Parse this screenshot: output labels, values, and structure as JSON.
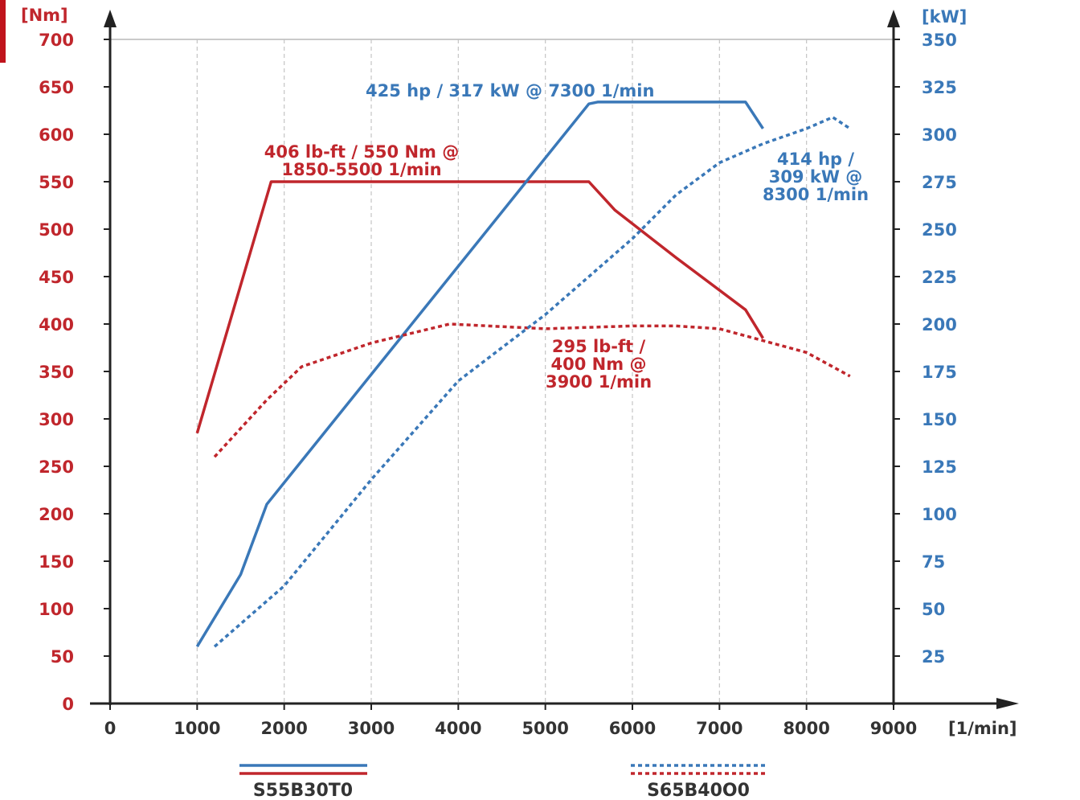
{
  "chart_data": {
    "type": "line",
    "title": "",
    "x_axis": {
      "label": "[1/min]",
      "min": 0,
      "max": 9000,
      "ticks": [
        0,
        1000,
        2000,
        3000,
        4000,
        5000,
        6000,
        7000,
        8000,
        9000
      ]
    },
    "y_axis_left": {
      "label": "[Nm]",
      "min": 0,
      "max": 700,
      "ticks": [
        0,
        50,
        100,
        150,
        200,
        250,
        300,
        350,
        400,
        450,
        500,
        550,
        600,
        650,
        700
      ],
      "color": "#c0262c"
    },
    "y_axis_right": {
      "label": "[kW]",
      "min": 0,
      "max": 350,
      "ticks": [
        25,
        50,
        75,
        100,
        125,
        150,
        175,
        200,
        225,
        250,
        275,
        300,
        325,
        350
      ],
      "color": "#3a78b8"
    },
    "grid": "vertical-dashed",
    "legend": [
      {
        "name": "S55B30T0",
        "style": "solid"
      },
      {
        "name": "S65B40O0",
        "style": "dotted"
      }
    ],
    "series": [
      {
        "engine": "S55B30T0",
        "quantity": "torque",
        "axis": "left",
        "color": "#c0262c",
        "style": "solid",
        "x": [
          1000,
          1850,
          5500,
          5800,
          6500,
          7300,
          7500
        ],
        "y": [
          285,
          550,
          550,
          520,
          470,
          415,
          385
        ]
      },
      {
        "engine": "S55B30T0",
        "quantity": "power",
        "axis": "right",
        "color": "#3a78b8",
        "style": "solid",
        "x": [
          1000,
          1500,
          1800,
          5500,
          5600,
          7300,
          7500
        ],
        "y": [
          30,
          68,
          105,
          316,
          317,
          317,
          303
        ]
      },
      {
        "engine": "S65B40O0",
        "quantity": "torque",
        "axis": "left",
        "color": "#c0262c",
        "style": "dotted",
        "x": [
          1200,
          1800,
          2200,
          3000,
          3900,
          5000,
          6000,
          6500,
          7000,
          8000,
          8500
        ],
        "y": [
          260,
          320,
          355,
          380,
          400,
          395,
          398,
          398,
          395,
          370,
          345
        ]
      },
      {
        "engine": "S65B40O0",
        "quantity": "power",
        "axis": "right",
        "color": "#3a78b8",
        "style": "dotted",
        "x": [
          1200,
          2000,
          3000,
          4000,
          5000,
          6000,
          6500,
          7000,
          7500,
          8000,
          8300,
          8500
        ],
        "y": [
          30,
          62,
          118,
          170,
          205,
          245,
          268,
          285,
          295,
          303,
          309,
          303
        ]
      }
    ],
    "annotations": [
      {
        "lines": [
          "425 hp / 317 kW @ 7300 1/min"
        ],
        "color": "#3a78b8",
        "anchor": "start"
      },
      {
        "lines": [
          "406 lb-ft / 550 Nm @",
          "1850-5500 1/min"
        ],
        "color": "#c0262c",
        "anchor": "middle"
      },
      {
        "lines": [
          "414 hp /",
          "309 kW @",
          "8300 1/min"
        ],
        "color": "#3a78b8",
        "anchor": "middle"
      },
      {
        "lines": [
          "295 lb-ft /",
          "400 Nm @",
          "3900 1/min"
        ],
        "color": "#c0262c",
        "anchor": "middle"
      }
    ]
  }
}
